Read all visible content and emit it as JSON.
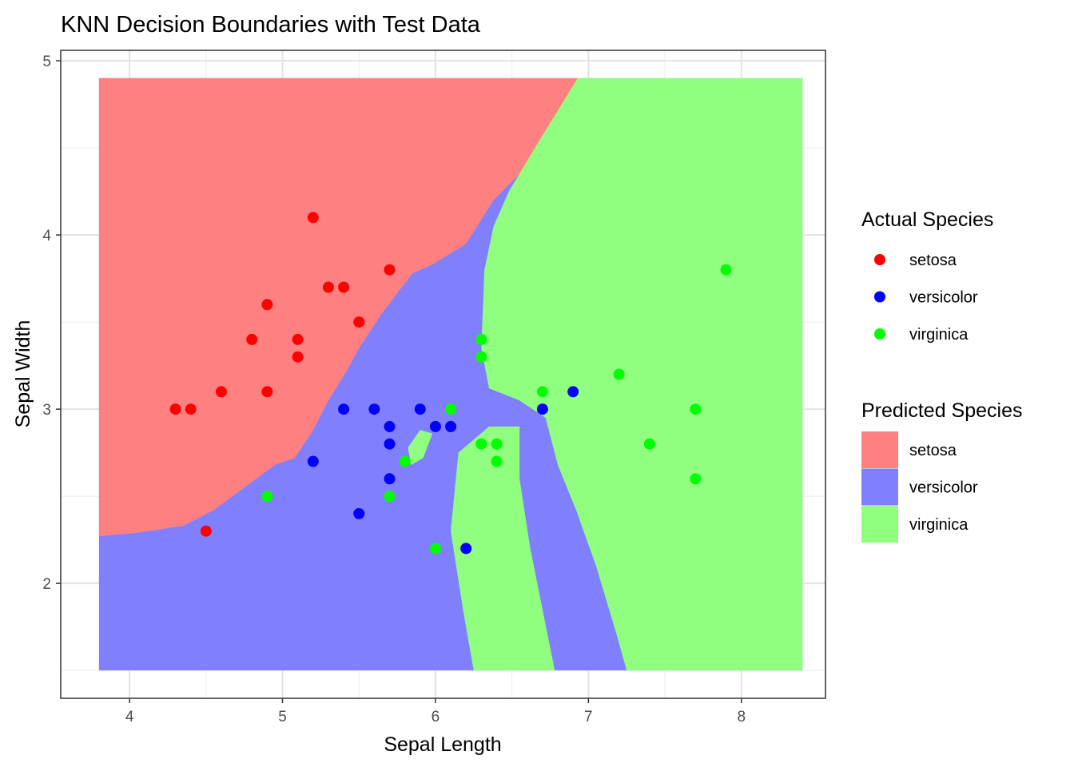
{
  "chart_data": {
    "type": "scatter",
    "title": "KNN Decision Boundaries with Test Data",
    "xlabel": "Sepal Length",
    "ylabel": "Sepal Width",
    "xlim": [
      3.55,
      8.55
    ],
    "ylim": [
      1.34,
      5.06
    ],
    "xticks": [
      4,
      5,
      6,
      7,
      8
    ],
    "yticks": [
      2,
      3,
      4,
      5
    ],
    "grid": true,
    "background_region": {
      "x_range": [
        3.8,
        8.4
      ],
      "y_range": [
        1.5,
        4.9
      ],
      "description_classes": [
        "setosa",
        "versicolor",
        "virginica"
      ]
    },
    "legend_actual": {
      "title": "Actual Species",
      "items": [
        {
          "label": "setosa",
          "color": "#ff0000"
        },
        {
          "label": "versicolor",
          "color": "#0000ff"
        },
        {
          "label": "virginica",
          "color": "#00ff00"
        }
      ]
    },
    "legend_predicted": {
      "title": "Predicted Species",
      "items": [
        {
          "label": "setosa",
          "color": "#ff8080"
        },
        {
          "label": "versicolor",
          "color": "#8080ff"
        },
        {
          "label": "virginica",
          "color": "#90ff80"
        }
      ]
    },
    "region_colors": {
      "setosa": "#ff8080",
      "versicolor": "#8080ff",
      "virginica": "#90ff80"
    },
    "point_colors": {
      "setosa": "#ff0000",
      "versicolor": "#0000ff",
      "virginica": "#00ff00"
    },
    "points": [
      {
        "x": 5.2,
        "y": 4.1,
        "species": "setosa"
      },
      {
        "x": 5.7,
        "y": 3.8,
        "species": "setosa"
      },
      {
        "x": 5.3,
        "y": 3.7,
        "species": "setosa"
      },
      {
        "x": 5.4,
        "y": 3.7,
        "species": "setosa"
      },
      {
        "x": 4.9,
        "y": 3.6,
        "species": "setosa"
      },
      {
        "x": 5.5,
        "y": 3.5,
        "species": "setosa"
      },
      {
        "x": 4.8,
        "y": 3.4,
        "species": "setosa"
      },
      {
        "x": 5.1,
        "y": 3.4,
        "species": "setosa"
      },
      {
        "x": 5.1,
        "y": 3.3,
        "species": "setosa"
      },
      {
        "x": 4.6,
        "y": 3.1,
        "species": "setosa"
      },
      {
        "x": 4.9,
        "y": 3.1,
        "species": "setosa"
      },
      {
        "x": 4.3,
        "y": 3.0,
        "species": "setosa"
      },
      {
        "x": 4.4,
        "y": 3.0,
        "species": "setosa"
      },
      {
        "x": 4.5,
        "y": 2.3,
        "species": "setosa"
      },
      {
        "x": 5.4,
        "y": 3.0,
        "species": "versicolor"
      },
      {
        "x": 5.6,
        "y": 3.0,
        "species": "versicolor"
      },
      {
        "x": 5.9,
        "y": 3.0,
        "species": "versicolor"
      },
      {
        "x": 5.7,
        "y": 2.9,
        "species": "versicolor"
      },
      {
        "x": 6.0,
        "y": 2.9,
        "species": "versicolor"
      },
      {
        "x": 6.1,
        "y": 2.9,
        "species": "versicolor"
      },
      {
        "x": 6.7,
        "y": 3.0,
        "species": "versicolor"
      },
      {
        "x": 6.9,
        "y": 3.1,
        "species": "versicolor"
      },
      {
        "x": 5.7,
        "y": 2.8,
        "species": "versicolor"
      },
      {
        "x": 5.2,
        "y": 2.7,
        "species": "versicolor"
      },
      {
        "x": 5.7,
        "y": 2.6,
        "species": "versicolor"
      },
      {
        "x": 5.5,
        "y": 2.4,
        "species": "versicolor"
      },
      {
        "x": 6.2,
        "y": 2.2,
        "species": "versicolor"
      },
      {
        "x": 7.9,
        "y": 3.8,
        "species": "virginica"
      },
      {
        "x": 6.3,
        "y": 3.4,
        "species": "virginica"
      },
      {
        "x": 6.3,
        "y": 3.3,
        "species": "virginica"
      },
      {
        "x": 7.2,
        "y": 3.2,
        "species": "virginica"
      },
      {
        "x": 6.7,
        "y": 3.1,
        "species": "virginica"
      },
      {
        "x": 6.1,
        "y": 3.0,
        "species": "virginica"
      },
      {
        "x": 7.7,
        "y": 3.0,
        "species": "virginica"
      },
      {
        "x": 6.3,
        "y": 2.8,
        "species": "virginica"
      },
      {
        "x": 6.4,
        "y": 2.8,
        "species": "virginica"
      },
      {
        "x": 7.4,
        "y": 2.8,
        "species": "virginica"
      },
      {
        "x": 5.8,
        "y": 2.7,
        "species": "virginica"
      },
      {
        "x": 6.4,
        "y": 2.7,
        "species": "virginica"
      },
      {
        "x": 7.7,
        "y": 2.6,
        "species": "virginica"
      },
      {
        "x": 4.9,
        "y": 2.5,
        "species": "virginica"
      },
      {
        "x": 5.7,
        "y": 2.5,
        "species": "virginica"
      },
      {
        "x": 6.0,
        "y": 2.2,
        "species": "virginica"
      }
    ]
  }
}
